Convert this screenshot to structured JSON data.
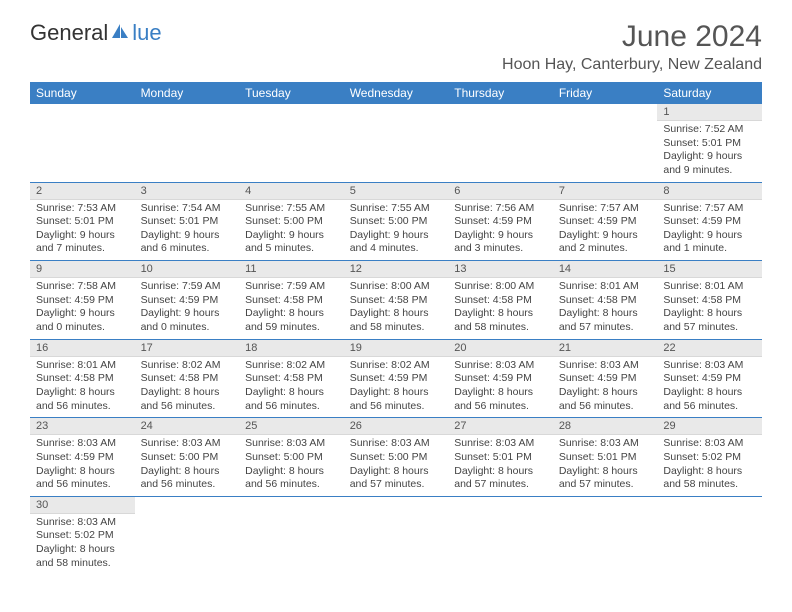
{
  "brand": {
    "part1": "General",
    "part2": "lue"
  },
  "title": "June 2024",
  "location": "Hoon Hay, Canterbury, New Zealand",
  "colors": {
    "accent": "#3a7fc4",
    "header_bg": "#3a7fc4",
    "daynum_bg": "#e9e9e9",
    "text": "#444444",
    "bg": "#ffffff"
  },
  "weekdays": [
    "Sunday",
    "Monday",
    "Tuesday",
    "Wednesday",
    "Thursday",
    "Friday",
    "Saturday"
  ],
  "weeks": [
    [
      null,
      null,
      null,
      null,
      null,
      null,
      {
        "n": "1",
        "sr": "Sunrise: 7:52 AM",
        "ss": "Sunset: 5:01 PM",
        "d1": "Daylight: 9 hours",
        "d2": "and 9 minutes."
      }
    ],
    [
      {
        "n": "2",
        "sr": "Sunrise: 7:53 AM",
        "ss": "Sunset: 5:01 PM",
        "d1": "Daylight: 9 hours",
        "d2": "and 7 minutes."
      },
      {
        "n": "3",
        "sr": "Sunrise: 7:54 AM",
        "ss": "Sunset: 5:01 PM",
        "d1": "Daylight: 9 hours",
        "d2": "and 6 minutes."
      },
      {
        "n": "4",
        "sr": "Sunrise: 7:55 AM",
        "ss": "Sunset: 5:00 PM",
        "d1": "Daylight: 9 hours",
        "d2": "and 5 minutes."
      },
      {
        "n": "5",
        "sr": "Sunrise: 7:55 AM",
        "ss": "Sunset: 5:00 PM",
        "d1": "Daylight: 9 hours",
        "d2": "and 4 minutes."
      },
      {
        "n": "6",
        "sr": "Sunrise: 7:56 AM",
        "ss": "Sunset: 4:59 PM",
        "d1": "Daylight: 9 hours",
        "d2": "and 3 minutes."
      },
      {
        "n": "7",
        "sr": "Sunrise: 7:57 AM",
        "ss": "Sunset: 4:59 PM",
        "d1": "Daylight: 9 hours",
        "d2": "and 2 minutes."
      },
      {
        "n": "8",
        "sr": "Sunrise: 7:57 AM",
        "ss": "Sunset: 4:59 PM",
        "d1": "Daylight: 9 hours",
        "d2": "and 1 minute."
      }
    ],
    [
      {
        "n": "9",
        "sr": "Sunrise: 7:58 AM",
        "ss": "Sunset: 4:59 PM",
        "d1": "Daylight: 9 hours",
        "d2": "and 0 minutes."
      },
      {
        "n": "10",
        "sr": "Sunrise: 7:59 AM",
        "ss": "Sunset: 4:59 PM",
        "d1": "Daylight: 9 hours",
        "d2": "and 0 minutes."
      },
      {
        "n": "11",
        "sr": "Sunrise: 7:59 AM",
        "ss": "Sunset: 4:58 PM",
        "d1": "Daylight: 8 hours",
        "d2": "and 59 minutes."
      },
      {
        "n": "12",
        "sr": "Sunrise: 8:00 AM",
        "ss": "Sunset: 4:58 PM",
        "d1": "Daylight: 8 hours",
        "d2": "and 58 minutes."
      },
      {
        "n": "13",
        "sr": "Sunrise: 8:00 AM",
        "ss": "Sunset: 4:58 PM",
        "d1": "Daylight: 8 hours",
        "d2": "and 58 minutes."
      },
      {
        "n": "14",
        "sr": "Sunrise: 8:01 AM",
        "ss": "Sunset: 4:58 PM",
        "d1": "Daylight: 8 hours",
        "d2": "and 57 minutes."
      },
      {
        "n": "15",
        "sr": "Sunrise: 8:01 AM",
        "ss": "Sunset: 4:58 PM",
        "d1": "Daylight: 8 hours",
        "d2": "and 57 minutes."
      }
    ],
    [
      {
        "n": "16",
        "sr": "Sunrise: 8:01 AM",
        "ss": "Sunset: 4:58 PM",
        "d1": "Daylight: 8 hours",
        "d2": "and 56 minutes."
      },
      {
        "n": "17",
        "sr": "Sunrise: 8:02 AM",
        "ss": "Sunset: 4:58 PM",
        "d1": "Daylight: 8 hours",
        "d2": "and 56 minutes."
      },
      {
        "n": "18",
        "sr": "Sunrise: 8:02 AM",
        "ss": "Sunset: 4:58 PM",
        "d1": "Daylight: 8 hours",
        "d2": "and 56 minutes."
      },
      {
        "n": "19",
        "sr": "Sunrise: 8:02 AM",
        "ss": "Sunset: 4:59 PM",
        "d1": "Daylight: 8 hours",
        "d2": "and 56 minutes."
      },
      {
        "n": "20",
        "sr": "Sunrise: 8:03 AM",
        "ss": "Sunset: 4:59 PM",
        "d1": "Daylight: 8 hours",
        "d2": "and 56 minutes."
      },
      {
        "n": "21",
        "sr": "Sunrise: 8:03 AM",
        "ss": "Sunset: 4:59 PM",
        "d1": "Daylight: 8 hours",
        "d2": "and 56 minutes."
      },
      {
        "n": "22",
        "sr": "Sunrise: 8:03 AM",
        "ss": "Sunset: 4:59 PM",
        "d1": "Daylight: 8 hours",
        "d2": "and 56 minutes."
      }
    ],
    [
      {
        "n": "23",
        "sr": "Sunrise: 8:03 AM",
        "ss": "Sunset: 4:59 PM",
        "d1": "Daylight: 8 hours",
        "d2": "and 56 minutes."
      },
      {
        "n": "24",
        "sr": "Sunrise: 8:03 AM",
        "ss": "Sunset: 5:00 PM",
        "d1": "Daylight: 8 hours",
        "d2": "and 56 minutes."
      },
      {
        "n": "25",
        "sr": "Sunrise: 8:03 AM",
        "ss": "Sunset: 5:00 PM",
        "d1": "Daylight: 8 hours",
        "d2": "and 56 minutes."
      },
      {
        "n": "26",
        "sr": "Sunrise: 8:03 AM",
        "ss": "Sunset: 5:00 PM",
        "d1": "Daylight: 8 hours",
        "d2": "and 57 minutes."
      },
      {
        "n": "27",
        "sr": "Sunrise: 8:03 AM",
        "ss": "Sunset: 5:01 PM",
        "d1": "Daylight: 8 hours",
        "d2": "and 57 minutes."
      },
      {
        "n": "28",
        "sr": "Sunrise: 8:03 AM",
        "ss": "Sunset: 5:01 PM",
        "d1": "Daylight: 8 hours",
        "d2": "and 57 minutes."
      },
      {
        "n": "29",
        "sr": "Sunrise: 8:03 AM",
        "ss": "Sunset: 5:02 PM",
        "d1": "Daylight: 8 hours",
        "d2": "and 58 minutes."
      }
    ],
    [
      {
        "n": "30",
        "sr": "Sunrise: 8:03 AM",
        "ss": "Sunset: 5:02 PM",
        "d1": "Daylight: 8 hours",
        "d2": "and 58 minutes."
      },
      null,
      null,
      null,
      null,
      null,
      null
    ]
  ]
}
